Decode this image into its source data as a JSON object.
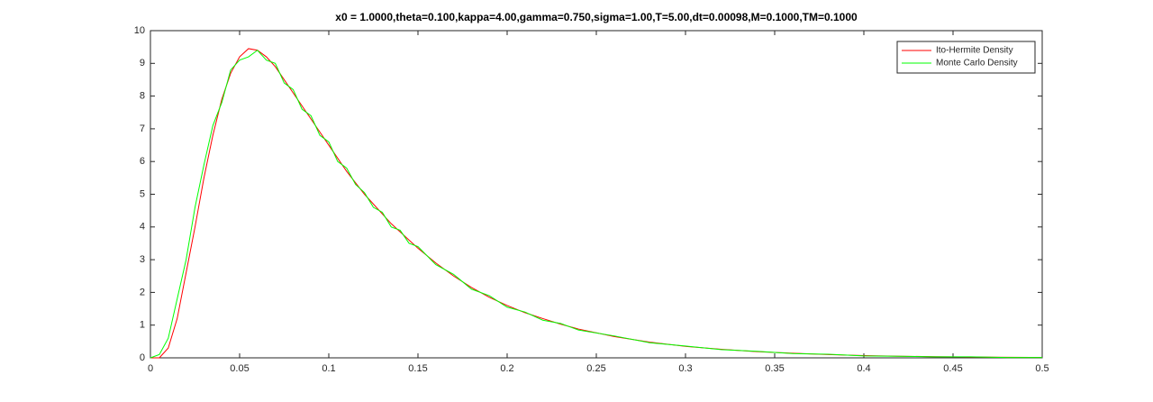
{
  "chart_data": {
    "type": "line",
    "title": "x0 = 1.0000,theta=0.100,kappa=4.00,gamma=0.750,sigma=1.00,T=5.00,dt=0.00098,M=0.1000,TM=0.1000",
    "x": [
      0,
      0.005,
      0.01,
      0.015,
      0.02,
      0.025,
      0.03,
      0.035,
      0.04,
      0.045,
      0.05,
      0.055,
      0.06,
      0.065,
      0.07,
      0.075,
      0.08,
      0.085,
      0.09,
      0.095,
      0.1,
      0.105,
      0.11,
      0.115,
      0.12,
      0.125,
      0.13,
      0.135,
      0.14,
      0.145,
      0.15,
      0.16,
      0.17,
      0.18,
      0.19,
      0.2,
      0.21,
      0.22,
      0.23,
      0.24,
      0.26,
      0.28,
      0.3,
      0.32,
      0.34,
      0.36,
      0.38,
      0.4,
      0.42,
      0.44,
      0.46,
      0.48,
      0.5
    ],
    "series": [
      {
        "name": "Ito-Hermite Density",
        "color": "#ff0000",
        "values": [
          0,
          0,
          0.3,
          1.2,
          2.6,
          4.0,
          5.5,
          6.8,
          7.9,
          8.7,
          9.2,
          9.45,
          9.4,
          9.2,
          8.9,
          8.5,
          8.1,
          7.7,
          7.3,
          6.9,
          6.5,
          6.1,
          5.7,
          5.35,
          5.0,
          4.7,
          4.4,
          4.1,
          3.85,
          3.6,
          3.35,
          2.9,
          2.5,
          2.15,
          1.85,
          1.6,
          1.38,
          1.2,
          1.03,
          0.88,
          0.65,
          0.48,
          0.35,
          0.26,
          0.19,
          0.14,
          0.1,
          0.07,
          0.05,
          0.035,
          0.025,
          0.017,
          0.012
        ]
      },
      {
        "name": "Monte Carlo Density",
        "color": "#00ff00",
        "values": [
          0,
          0.1,
          0.6,
          1.8,
          3.0,
          4.6,
          5.9,
          7.1,
          7.8,
          8.8,
          9.1,
          9.2,
          9.4,
          9.1,
          9.0,
          8.4,
          8.2,
          7.6,
          7.4,
          6.8,
          6.6,
          6.0,
          5.8,
          5.3,
          5.05,
          4.6,
          4.45,
          4.0,
          3.9,
          3.5,
          3.4,
          2.85,
          2.55,
          2.1,
          1.9,
          1.55,
          1.4,
          1.15,
          1.05,
          0.85,
          0.67,
          0.46,
          0.36,
          0.25,
          0.2,
          0.13,
          0.11,
          0.06,
          0.05,
          0.03,
          0.03,
          0.01,
          0.01
        ]
      }
    ],
    "xlim": [
      0,
      0.5
    ],
    "xticks": [
      0,
      0.05,
      0.1,
      0.15,
      0.2,
      0.25,
      0.3,
      0.35,
      0.4,
      0.45,
      0.5
    ],
    "ylim": [
      0,
      10
    ],
    "yticks": [
      0,
      1,
      2,
      3,
      4,
      5,
      6,
      7,
      8,
      9,
      10
    ],
    "legend": "top-right",
    "grid": false
  }
}
